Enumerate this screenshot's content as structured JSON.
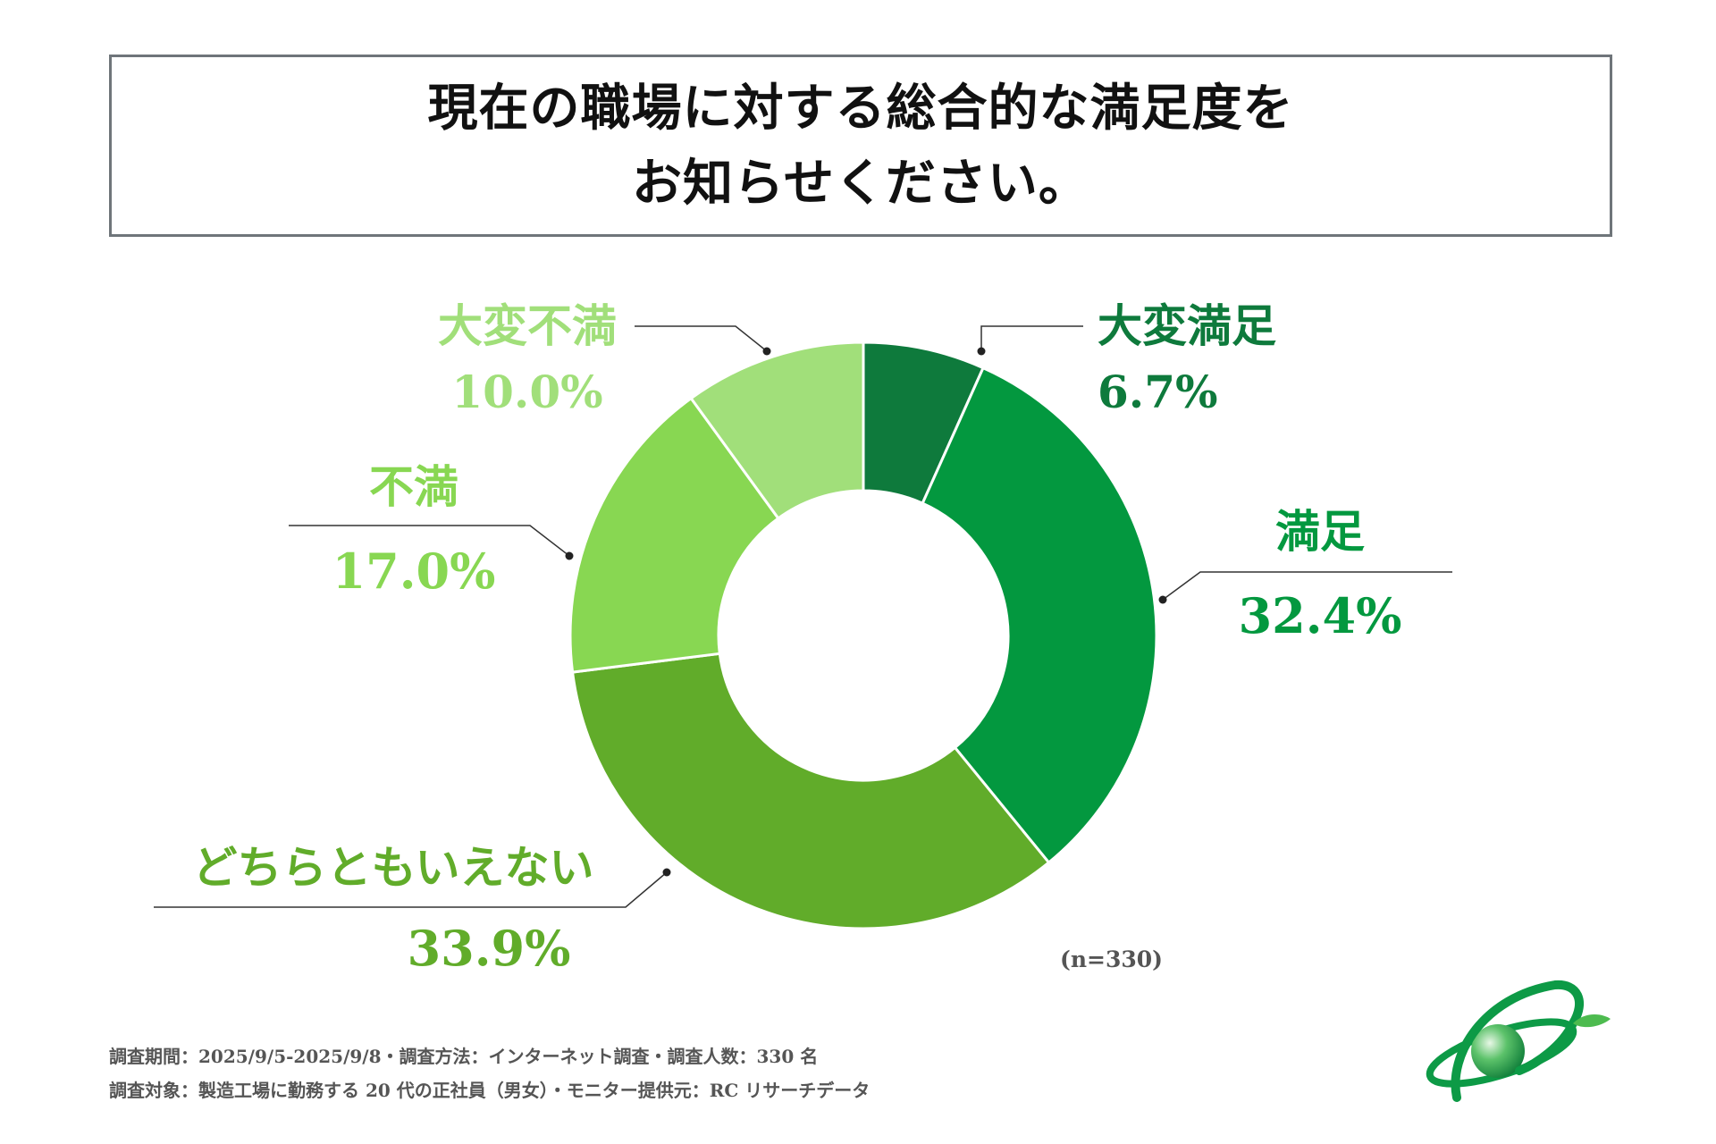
{
  "title": {
    "line1": "現在の職場に対する総合的な満足度を",
    "line2": "お知らせください。"
  },
  "colors": {
    "very_satisfied": "#0e7a3c",
    "satisfied": "#03983f",
    "neutral": "#61ac2a",
    "dissatisfied": "#88d752",
    "very_dissatisfied": "#a1df7a",
    "leader": "#333333"
  },
  "chart_data": {
    "type": "pie",
    "donut": true,
    "title": "現在の職場に対する総合的な満足度をお知らせください。",
    "categories": [
      "大変満足",
      "満足",
      "どちらともいえない",
      "不満",
      "大変不満"
    ],
    "values": [
      6.7,
      32.4,
      33.9,
      17.0,
      10.0
    ],
    "value_labels": [
      "6.7%",
      "32.4%",
      "33.9%",
      "17.0%",
      "10.0%"
    ],
    "color_keys": [
      "very_satisfied",
      "satisfied",
      "neutral",
      "dissatisfied",
      "very_dissatisfied"
    ],
    "start": "12 o'clock",
    "direction": "clockwise",
    "sample_note": "(n=330)"
  },
  "footnotes": {
    "line1": "調査期間：2025/9/5-2025/9/8・調査方法：インターネット調査・調査人数：330 名",
    "line2": "調査対象：製造工場に勤務する 20 代の正社員（男女）・モニター提供元：RC リサーチデータ"
  },
  "logo": {
    "icon": "green-orbit-globe-icon"
  }
}
